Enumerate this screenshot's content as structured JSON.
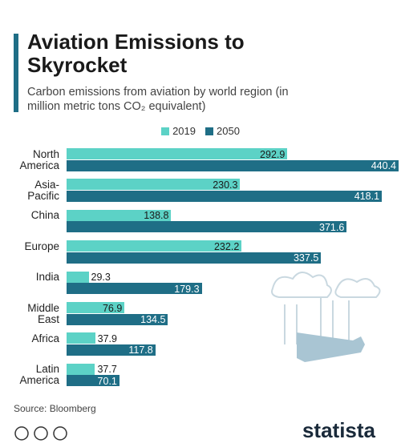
{
  "chart_data": {
    "type": "bar",
    "orientation": "horizontal",
    "title": "Aviation Emissions to Skyrocket",
    "subtitle": "Carbon emissions from aviation by world region (in million metric tons CO₂ equivalent)",
    "categories": [
      "North America",
      "Asia-Pacific",
      "China",
      "Europe",
      "India",
      "Middle East",
      "Africa",
      "Latin America"
    ],
    "series": [
      {
        "name": "2019",
        "color": "#5cd2c6",
        "values": [
          292.9,
          230.3,
          138.8,
          232.2,
          29.3,
          76.9,
          37.9,
          37.7
        ]
      },
      {
        "name": "2050",
        "color": "#1f6e86",
        "values": [
          440.4,
          418.1,
          371.6,
          337.5,
          179.3,
          134.5,
          117.8,
          70.1
        ]
      }
    ],
    "source": "Source: Bloomberg",
    "brand": "statista"
  }
}
